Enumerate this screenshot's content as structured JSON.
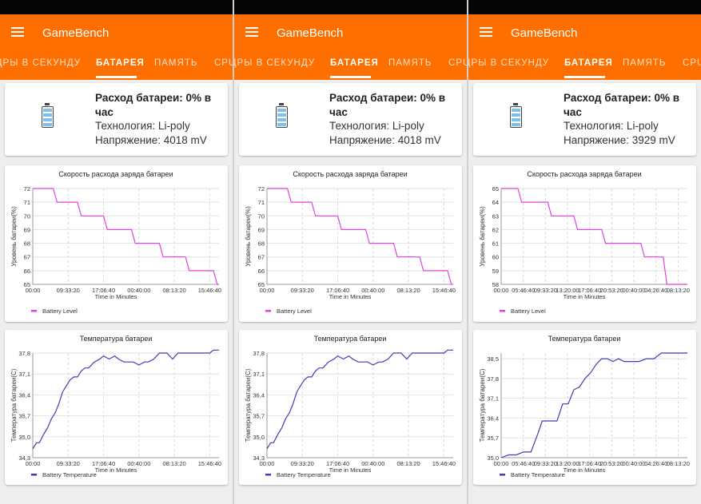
{
  "app": {
    "title": "GameBench"
  },
  "tabs": [
    {
      "label": "КАДРЫ В СЕКУНДУ"
    },
    {
      "label": "БАТАРЕЯ"
    },
    {
      "label": "ПАМЯТЬ"
    },
    {
      "label": "CPU"
    }
  ],
  "colors": {
    "accent": "#ff6f00",
    "level_line": "#e040e0",
    "temp_line": "#3a3fb5"
  },
  "panels": [
    {
      "info": {
        "rate": "Расход батареи: 0% в час",
        "tech": "Технология: Li-poly",
        "voltage": "Напряжение: 4018 mV"
      },
      "chart_data": [
        {
          "type": "line",
          "title": "Скорость расхода заряда батареи",
          "xlabel": "Time in Minutes",
          "ylabel": "Уровень батареи(%)",
          "x_ticks": [
            "00:00",
            "09:33:20",
            "17:06:40",
            "00:40:00",
            "08:13:20",
            "15:46:40"
          ],
          "y_ticks": [
            "65",
            "66",
            "67",
            "68",
            "69",
            "70",
            "71",
            "72"
          ],
          "ylim": [
            65,
            72
          ],
          "series": [
            {
              "name": "Battery Level",
              "x": [
                0,
                0.11,
                0.13,
                0.24,
                0.26,
                0.38,
                0.4,
                0.53,
                0.55,
                0.68,
                0.7,
                0.82,
                0.84,
                0.97,
                0.99,
                1.0
              ],
              "values": [
                72,
                72,
                71,
                71,
                70,
                70,
                69,
                69,
                68,
                68,
                67,
                67,
                66,
                66,
                65,
                65
              ]
            }
          ],
          "grid": "vertical dashed + horizontal",
          "legend": "bottom-left"
        },
        {
          "type": "line",
          "title": "Температура батареи",
          "xlabel": "Time in Minutes",
          "ylabel": "Температура батареи(С)",
          "x_ticks": [
            "00:00",
            "09:33:20",
            "17:06:40",
            "00:40:00",
            "08:13:20",
            "15:46:40"
          ],
          "y_ticks": [
            "34,3",
            "35,0",
            "35,7",
            "36,4",
            "37,1",
            "37,8"
          ],
          "ylim": [
            34.3,
            37.8
          ],
          "series": [
            {
              "name": "Battery Temperature",
              "x": [
                0,
                0.02,
                0.035,
                0.06,
                0.08,
                0.1,
                0.12,
                0.14,
                0.16,
                0.18,
                0.2,
                0.22,
                0.24,
                0.26,
                0.28,
                0.3,
                0.33,
                0.36,
                0.38,
                0.41,
                0.44,
                0.46,
                0.49,
                0.51,
                0.54,
                0.57,
                0.6,
                0.62,
                0.65,
                0.68,
                0.7,
                0.72,
                0.75,
                0.78,
                0.8,
                0.82,
                0.85,
                0.87,
                0.89,
                0.91,
                0.93,
                0.95,
                0.97,
                1.0
              ],
              "values": [
                34.6,
                34.8,
                34.8,
                35.1,
                35.3,
                35.6,
                35.8,
                36.1,
                36.5,
                36.7,
                36.9,
                37.0,
                37.0,
                37.2,
                37.3,
                37.3,
                37.5,
                37.6,
                37.7,
                37.6,
                37.7,
                37.6,
                37.5,
                37.5,
                37.5,
                37.4,
                37.5,
                37.5,
                37.6,
                37.8,
                37.8,
                37.8,
                37.6,
                37.8,
                37.8,
                37.8,
                37.8,
                37.8,
                37.8,
                37.8,
                37.8,
                37.8,
                37.9,
                37.9
              ]
            }
          ],
          "grid": "vertical dashed + horizontal",
          "legend": "bottom-left"
        }
      ]
    },
    {
      "info": {
        "rate": "Расход батареи: 0% в час",
        "tech": "Технология: Li-poly",
        "voltage": "Напряжение: 4018 mV"
      },
      "chart_data": [
        {
          "type": "line",
          "title": "Скорость расхода заряда батареи",
          "xlabel": "Time in Minutes",
          "ylabel": "Уровень батареи(%)",
          "x_ticks": [
            "00:00",
            "09:33:20",
            "17:06:40",
            "00:40:00",
            "08:13:20",
            "15:46:40"
          ],
          "y_ticks": [
            "65",
            "66",
            "67",
            "68",
            "69",
            "70",
            "71",
            "72"
          ],
          "ylim": [
            65,
            72
          ],
          "series": [
            {
              "name": "Battery Level",
              "x": [
                0,
                0.11,
                0.13,
                0.24,
                0.26,
                0.38,
                0.4,
                0.53,
                0.55,
                0.68,
                0.7,
                0.82,
                0.84,
                0.97,
                0.99,
                1.0
              ],
              "values": [
                72,
                72,
                71,
                71,
                70,
                70,
                69,
                69,
                68,
                68,
                67,
                67,
                66,
                66,
                65,
                65
              ]
            }
          ],
          "grid": "vertical dashed + horizontal",
          "legend": "bottom-left"
        },
        {
          "type": "line",
          "title": "Температура батареи",
          "xlabel": "Time in Minutes",
          "ylabel": "Температура батареи(С)",
          "x_ticks": [
            "00:00",
            "09:33:20",
            "17:06:40",
            "00:40:00",
            "08:13:20",
            "15:46:40"
          ],
          "y_ticks": [
            "34,3",
            "35,0",
            "35,7",
            "36,4",
            "37,1",
            "37,8"
          ],
          "ylim": [
            34.3,
            37.8
          ],
          "series": [
            {
              "name": "Battery Temperature",
              "x": [
                0,
                0.02,
                0.035,
                0.06,
                0.08,
                0.1,
                0.12,
                0.14,
                0.16,
                0.18,
                0.2,
                0.22,
                0.24,
                0.26,
                0.28,
                0.3,
                0.33,
                0.36,
                0.38,
                0.41,
                0.44,
                0.46,
                0.49,
                0.51,
                0.54,
                0.57,
                0.6,
                0.62,
                0.65,
                0.68,
                0.7,
                0.72,
                0.75,
                0.78,
                0.8,
                0.82,
                0.85,
                0.87,
                0.89,
                0.91,
                0.93,
                0.95,
                0.97,
                1.0
              ],
              "values": [
                34.6,
                34.8,
                34.8,
                35.1,
                35.3,
                35.6,
                35.8,
                36.1,
                36.5,
                36.7,
                36.9,
                37.0,
                37.0,
                37.2,
                37.3,
                37.3,
                37.5,
                37.6,
                37.7,
                37.6,
                37.7,
                37.6,
                37.5,
                37.5,
                37.5,
                37.4,
                37.5,
                37.5,
                37.6,
                37.8,
                37.8,
                37.8,
                37.6,
                37.8,
                37.8,
                37.8,
                37.8,
                37.8,
                37.8,
                37.8,
                37.8,
                37.8,
                37.9,
                37.9
              ]
            }
          ],
          "grid": "vertical dashed + horizontal",
          "legend": "bottom-left"
        }
      ]
    },
    {
      "info": {
        "rate": "Расход батареи: 0% в час",
        "tech": "Технология: Li-poly",
        "voltage": "Напряжение: 3929 mV"
      },
      "chart_data": [
        {
          "type": "line",
          "title": "Скорость расхода заряда батареи",
          "xlabel": "Time in Minutes",
          "ylabel": "Уровень батареи(%)",
          "x_ticks": [
            "00:00",
            "05:46:40",
            "09:33:20",
            "13:20:00",
            "17:06:40",
            "20:53:20",
            "00:40:00",
            "04:26:40",
            "08:13:20"
          ],
          "y_ticks": [
            "58",
            "59",
            "60",
            "61",
            "62",
            "63",
            "64",
            "65"
          ],
          "ylim": [
            58,
            65
          ],
          "series": [
            {
              "name": "Battery Level",
              "x": [
                0,
                0.09,
                0.11,
                0.25,
                0.27,
                0.39,
                0.41,
                0.54,
                0.56,
                0.75,
                0.77,
                0.87,
                0.89,
                1.0
              ],
              "values": [
                65,
                65,
                64,
                64,
                63,
                63,
                62,
                62,
                61,
                61,
                60,
                60,
                58,
                58
              ]
            }
          ],
          "grid": "vertical dashed + horizontal",
          "legend": "bottom-left"
        },
        {
          "type": "line",
          "title": "Температура батареи",
          "xlabel": "Time in Minutes",
          "ylabel": "Температура батареи(С)",
          "x_ticks": [
            "00:00",
            "05:46:40",
            "09:33:20",
            "13:20:00",
            "17:06:40",
            "20:53:20",
            "00:40:00",
            "04:26:40",
            "08:13:20"
          ],
          "y_ticks": [
            "35,0",
            "35,7",
            "36,4",
            "37,1",
            "37,8",
            "38,5"
          ],
          "ylim": [
            35.0,
            38.7
          ],
          "series": [
            {
              "name": "Battery Temperature",
              "x": [
                0,
                0.04,
                0.08,
                0.12,
                0.16,
                0.2,
                0.22,
                0.26,
                0.3,
                0.33,
                0.36,
                0.39,
                0.42,
                0.45,
                0.48,
                0.51,
                0.54,
                0.57,
                0.6,
                0.63,
                0.66,
                0.7,
                0.74,
                0.78,
                0.82,
                0.86,
                0.9,
                0.94,
                1.0
              ],
              "values": [
                35.0,
                35.1,
                35.1,
                35.2,
                35.2,
                35.9,
                36.3,
                36.3,
                36.3,
                36.9,
                36.9,
                37.4,
                37.5,
                37.8,
                38.0,
                38.3,
                38.5,
                38.5,
                38.4,
                38.5,
                38.4,
                38.4,
                38.4,
                38.5,
                38.5,
                38.7,
                38.7,
                38.7,
                38.7
              ]
            }
          ],
          "grid": "vertical dashed + horizontal",
          "legend": "bottom-left"
        }
      ]
    }
  ]
}
